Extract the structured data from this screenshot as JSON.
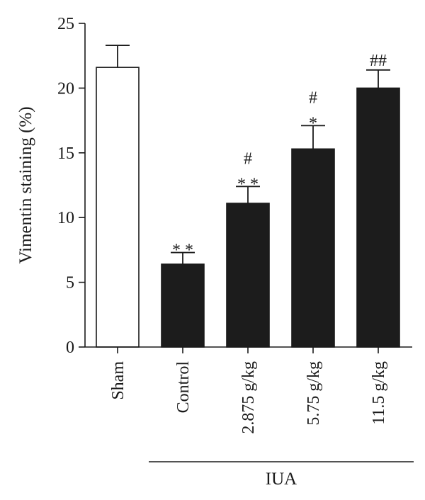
{
  "chart_data": {
    "type": "bar",
    "title": "",
    "xlabel": "",
    "ylabel": "Vimentin staining (%)",
    "ylim": [
      0,
      25
    ],
    "yticks": [
      0,
      5,
      10,
      15,
      20,
      25
    ],
    "grid": false,
    "categories": [
      "Sham",
      "Control",
      "2.875 g/kg",
      "5.75 g/kg",
      "11.5 g/kg"
    ],
    "values": [
      21.6,
      6.4,
      11.1,
      15.3,
      20.0
    ],
    "errors": [
      1.7,
      0.9,
      1.3,
      1.8,
      1.4
    ],
    "bar_colors": [
      "#ffffff",
      "#1c1c1c",
      "#1c1c1c",
      "#1c1c1c",
      "#1c1c1c"
    ],
    "significance_star": [
      "",
      "**",
      "**",
      "*",
      ""
    ],
    "significance_hash": [
      "",
      "",
      "#",
      "#",
      "##"
    ],
    "group_label": {
      "text": "IUA",
      "categories": [
        "Control",
        "2.875 g/kg",
        "5.75 g/kg",
        "11.5 g/kg"
      ]
    }
  }
}
